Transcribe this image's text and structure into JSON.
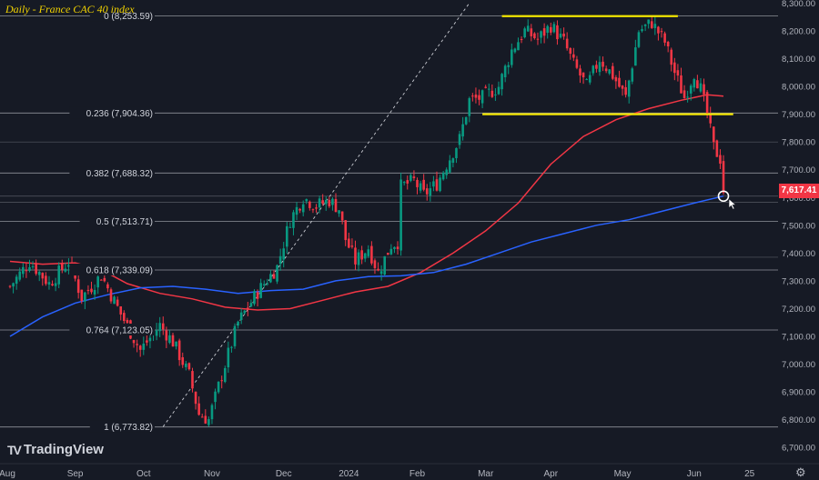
{
  "chart_data": {
    "type": "candlestick",
    "title": "Daily - France CAC 40 index",
    "instrument": "France CAC 40 index",
    "timeframe": "Daily",
    "last_price": "7,617.41",
    "ylim": [
      6620,
      8310
    ],
    "price_ticks": [
      6700,
      6800,
      6900,
      7000,
      7100,
      7200,
      7300,
      7400,
      7500,
      7600,
      7700,
      7800,
      7900,
      8000,
      8100,
      8200,
      8300
    ],
    "price_tick_labels": [
      "6,700.00",
      "6,800.00",
      "6,900.00",
      "7,000.00",
      "7,100.00",
      "7,200.00",
      "7,300.00",
      "7,400.00",
      "7,500.00",
      "7,600.00",
      "7,700.00",
      "7,800.00",
      "7,900.00",
      "8,000.00",
      "8,100.00",
      "8,200.00",
      "8,300.00"
    ],
    "date_ticks": [
      {
        "label": "Aug",
        "day": -2
      },
      {
        "label": "Sep",
        "day": 20
      },
      {
        "label": "Oct",
        "day": 41
      },
      {
        "label": "Nov",
        "day": 62
      },
      {
        "label": "Dec",
        "day": 84
      },
      {
        "label": "2024",
        "day": 104
      },
      {
        "label": "Feb",
        "day": 125
      },
      {
        "label": "Mar",
        "day": 146
      },
      {
        "label": "Apr",
        "day": 166
      },
      {
        "label": "May",
        "day": 188
      },
      {
        "label": "Jun",
        "day": 210
      },
      {
        "label": "25",
        "day": 227
      }
    ],
    "fib_levels": [
      {
        "ratio": "0",
        "price": 8253.59,
        "label": "0 (8,253.59)"
      },
      {
        "ratio": "0.236",
        "price": 7904.36,
        "label": "0.236 (7,904.36)"
      },
      {
        "ratio": "0.382",
        "price": 7688.32,
        "label": "0.382 (7,688.32)"
      },
      {
        "ratio": "0.5",
        "price": 7513.71,
        "label": "0.5 (7,513.71)"
      },
      {
        "ratio": "0.618",
        "price": 7339.09,
        "label": "0.618 (7,339.09)"
      },
      {
        "ratio": "0.764",
        "price": 7123.05,
        "label": "0.764 (7,123.05)"
      },
      {
        "ratio": "1",
        "price": 6773.82,
        "label": "1 (6,773.82)"
      }
    ],
    "extra_levels": [
      7385,
      7583,
      7605,
      7800
    ],
    "resistance_line": {
      "price": 8253,
      "from_day": 151,
      "to_day": 205,
      "color": "#f2e600"
    },
    "support_line": {
      "price": 7900,
      "from_day": 145,
      "to_day": 222,
      "color": "#f2e600"
    },
    "trend_line": {
      "from": {
        "day": 47,
        "price": 6775
      },
      "to": {
        "day": 141,
        "price": 8300
      }
    },
    "anchors": [
      {
        "day": 0,
        "price": 7280
      },
      {
        "day": 6,
        "price": 7370
      },
      {
        "day": 12,
        "price": 7290
      },
      {
        "day": 18,
        "price": 7370
      },
      {
        "day": 22,
        "price": 7240
      },
      {
        "day": 28,
        "price": 7320
      },
      {
        "day": 34,
        "price": 7180
      },
      {
        "day": 40,
        "price": 7050
      },
      {
        "day": 46,
        "price": 7140
      },
      {
        "day": 50,
        "price": 7080
      },
      {
        "day": 55,
        "price": 6960
      },
      {
        "day": 58,
        "price": 6820
      },
      {
        "day": 61,
        "price": 6800
      },
      {
        "day": 65,
        "price": 6960
      },
      {
        "day": 70,
        "price": 7150
      },
      {
        "day": 76,
        "price": 7260
      },
      {
        "day": 82,
        "price": 7350
      },
      {
        "day": 86,
        "price": 7520
      },
      {
        "day": 90,
        "price": 7600
      },
      {
        "day": 94,
        "price": 7570
      },
      {
        "day": 98,
        "price": 7590
      },
      {
        "day": 101,
        "price": 7560
      },
      {
        "day": 103,
        "price": 7450
      },
      {
        "day": 106,
        "price": 7370
      },
      {
        "day": 110,
        "price": 7420
      },
      {
        "day": 113,
        "price": 7330
      },
      {
        "day": 117,
        "price": 7430
      },
      {
        "day": 119,
        "price": 7440
      },
      {
        "day": 120,
        "price": 7640
      },
      {
        "day": 124,
        "price": 7660
      },
      {
        "day": 127,
        "price": 7610
      },
      {
        "day": 131,
        "price": 7650
      },
      {
        "day": 134,
        "price": 7720
      },
      {
        "day": 138,
        "price": 7810
      },
      {
        "day": 141,
        "price": 7950
      },
      {
        "day": 145,
        "price": 7960
      },
      {
        "day": 150,
        "price": 8000
      },
      {
        "day": 154,
        "price": 8130
      },
      {
        "day": 158,
        "price": 8200
      },
      {
        "day": 162,
        "price": 8170
      },
      {
        "day": 166,
        "price": 8220
      },
      {
        "day": 170,
        "price": 8160
      },
      {
        "day": 173,
        "price": 8080
      },
      {
        "day": 177,
        "price": 8000
      },
      {
        "day": 181,
        "price": 8100
      },
      {
        "day": 185,
        "price": 8040
      },
      {
        "day": 189,
        "price": 7960
      },
      {
        "day": 193,
        "price": 8200
      },
      {
        "day": 197,
        "price": 8230
      },
      {
        "day": 201,
        "price": 8160
      },
      {
        "day": 204,
        "price": 8050
      },
      {
        "day": 207,
        "price": 7960
      },
      {
        "day": 210,
        "price": 8050
      },
      {
        "day": 212,
        "price": 7990
      },
      {
        "day": 214,
        "price": 7900
      },
      {
        "day": 216,
        "price": 7780
      },
      {
        "day": 218,
        "price": 7740
      },
      {
        "day": 219,
        "price": 7617
      }
    ],
    "ma_red": [
      {
        "day": 0,
        "price": 7370
      },
      {
        "day": 10,
        "price": 7360
      },
      {
        "day": 20,
        "price": 7365
      },
      {
        "day": 28,
        "price": 7340
      },
      {
        "day": 36,
        "price": 7290
      },
      {
        "day": 46,
        "price": 7255
      },
      {
        "day": 56,
        "price": 7235
      },
      {
        "day": 66,
        "price": 7205
      },
      {
        "day": 76,
        "price": 7195
      },
      {
        "day": 86,
        "price": 7200
      },
      {
        "day": 96,
        "price": 7230
      },
      {
        "day": 106,
        "price": 7260
      },
      {
        "day": 116,
        "price": 7280
      },
      {
        "day": 126,
        "price": 7330
      },
      {
        "day": 136,
        "price": 7400
      },
      {
        "day": 146,
        "price": 7480
      },
      {
        "day": 156,
        "price": 7580
      },
      {
        "day": 166,
        "price": 7720
      },
      {
        "day": 176,
        "price": 7820
      },
      {
        "day": 186,
        "price": 7880
      },
      {
        "day": 196,
        "price": 7920
      },
      {
        "day": 206,
        "price": 7950
      },
      {
        "day": 214,
        "price": 7970
      },
      {
        "day": 219,
        "price": 7965
      }
    ],
    "ma_blue": [
      {
        "day": 0,
        "price": 7100
      },
      {
        "day": 10,
        "price": 7170
      },
      {
        "day": 20,
        "price": 7220
      },
      {
        "day": 30,
        "price": 7250
      },
      {
        "day": 40,
        "price": 7275
      },
      {
        "day": 50,
        "price": 7280
      },
      {
        "day": 60,
        "price": 7270
      },
      {
        "day": 70,
        "price": 7255
      },
      {
        "day": 80,
        "price": 7265
      },
      {
        "day": 90,
        "price": 7270
      },
      {
        "day": 100,
        "price": 7300
      },
      {
        "day": 110,
        "price": 7315
      },
      {
        "day": 120,
        "price": 7318
      },
      {
        "day": 130,
        "price": 7330
      },
      {
        "day": 140,
        "price": 7360
      },
      {
        "day": 150,
        "price": 7400
      },
      {
        "day": 160,
        "price": 7440
      },
      {
        "day": 170,
        "price": 7470
      },
      {
        "day": 180,
        "price": 7500
      },
      {
        "day": 190,
        "price": 7520
      },
      {
        "day": 200,
        "price": 7550
      },
      {
        "day": 210,
        "price": 7580
      },
      {
        "day": 219,
        "price": 7605
      }
    ],
    "ma_colors": {
      "red": "#f23645",
      "blue": "#2962ff"
    },
    "candle_colors": {
      "up": "#089981",
      "down": "#f23645"
    },
    "marker": {
      "day": 219,
      "price": 7605
    }
  },
  "ui": {
    "title": "Daily - France CAC 40 index",
    "brand": "TradingView",
    "brand_logo": "TV",
    "last_price_label": "7,617.41",
    "settings_icon_char": "⚙"
  }
}
